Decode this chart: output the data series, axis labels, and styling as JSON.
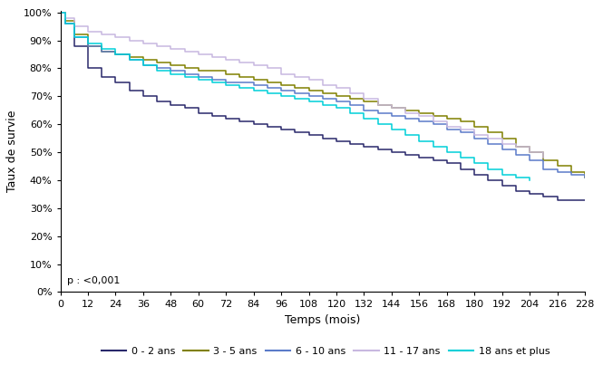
{
  "title": "",
  "xlabel": "Temps (mois)",
  "ylabel": "Taux de survie",
  "xlim": [
    0,
    228
  ],
  "ylim": [
    0,
    1.005
  ],
  "xticks": [
    0,
    12,
    24,
    36,
    48,
    60,
    72,
    84,
    96,
    108,
    120,
    132,
    144,
    156,
    168,
    180,
    192,
    204,
    216,
    228
  ],
  "yticks": [
    0.0,
    0.1,
    0.2,
    0.3,
    0.4,
    0.5,
    0.6,
    0.7,
    0.8,
    0.9,
    1.0
  ],
  "ytick_labels": [
    "0%",
    "10%",
    "20%",
    "30%",
    "40%",
    "50%",
    "60%",
    "70%",
    "80%",
    "90%",
    "100%"
  ],
  "pvalue_text": "p : <0,001",
  "legend_entries": [
    "0 - 2 ans",
    "3 - 5 ans",
    "6 - 10 ans",
    "11 - 17 ans",
    "18 ans et plus"
  ],
  "colors": [
    "#29286b",
    "#808000",
    "#5b7bc9",
    "#c8b8e0",
    "#00d0d8"
  ],
  "series": {
    "0_2_ans": {
      "x": [
        0,
        2,
        6,
        12,
        18,
        24,
        30,
        36,
        42,
        48,
        54,
        60,
        66,
        72,
        78,
        84,
        90,
        96,
        102,
        108,
        114,
        120,
        126,
        132,
        138,
        144,
        150,
        156,
        162,
        168,
        174,
        180,
        186,
        192,
        198,
        204,
        210,
        216,
        222,
        228
      ],
      "y": [
        1.0,
        0.96,
        0.88,
        0.8,
        0.77,
        0.75,
        0.72,
        0.7,
        0.68,
        0.67,
        0.66,
        0.64,
        0.63,
        0.62,
        0.61,
        0.6,
        0.59,
        0.58,
        0.57,
        0.56,
        0.55,
        0.54,
        0.53,
        0.52,
        0.51,
        0.5,
        0.49,
        0.48,
        0.47,
        0.46,
        0.44,
        0.42,
        0.4,
        0.38,
        0.36,
        0.35,
        0.34,
        0.33,
        0.33,
        0.33
      ]
    },
    "3_5_ans": {
      "x": [
        0,
        2,
        6,
        12,
        18,
        24,
        30,
        36,
        42,
        48,
        54,
        60,
        66,
        72,
        78,
        84,
        90,
        96,
        102,
        108,
        114,
        120,
        126,
        132,
        138,
        144,
        150,
        156,
        162,
        168,
        174,
        180,
        186,
        192,
        198,
        204,
        210,
        216,
        222,
        228
      ],
      "y": [
        1.0,
        0.97,
        0.92,
        0.88,
        0.86,
        0.85,
        0.84,
        0.83,
        0.82,
        0.81,
        0.8,
        0.79,
        0.79,
        0.78,
        0.77,
        0.76,
        0.75,
        0.74,
        0.73,
        0.72,
        0.71,
        0.7,
        0.69,
        0.68,
        0.67,
        0.66,
        0.65,
        0.64,
        0.63,
        0.62,
        0.61,
        0.59,
        0.57,
        0.55,
        0.52,
        0.5,
        0.47,
        0.45,
        0.43,
        0.41
      ]
    },
    "6_10_ans": {
      "x": [
        0,
        2,
        6,
        12,
        18,
        24,
        30,
        36,
        42,
        48,
        54,
        60,
        66,
        72,
        78,
        84,
        90,
        96,
        102,
        108,
        114,
        120,
        126,
        132,
        138,
        144,
        150,
        156,
        162,
        168,
        174,
        180,
        186,
        192,
        198,
        204,
        210,
        216,
        222,
        228
      ],
      "y": [
        1.0,
        0.96,
        0.91,
        0.88,
        0.86,
        0.85,
        0.83,
        0.81,
        0.8,
        0.79,
        0.78,
        0.77,
        0.76,
        0.75,
        0.75,
        0.74,
        0.73,
        0.72,
        0.71,
        0.7,
        0.69,
        0.68,
        0.67,
        0.65,
        0.64,
        0.63,
        0.62,
        0.61,
        0.6,
        0.58,
        0.57,
        0.55,
        0.53,
        0.51,
        0.49,
        0.47,
        0.44,
        0.43,
        0.42,
        0.41
      ]
    },
    "11_17_ans": {
      "x": [
        0,
        2,
        6,
        12,
        18,
        24,
        30,
        36,
        42,
        48,
        54,
        60,
        66,
        72,
        78,
        84,
        90,
        96,
        102,
        108,
        114,
        120,
        126,
        132,
        138,
        144,
        150,
        156,
        162,
        168,
        174,
        180,
        186,
        192,
        198,
        204,
        210
      ],
      "y": [
        1.0,
        0.98,
        0.95,
        0.93,
        0.92,
        0.91,
        0.9,
        0.89,
        0.88,
        0.87,
        0.86,
        0.85,
        0.84,
        0.83,
        0.82,
        0.81,
        0.8,
        0.78,
        0.77,
        0.76,
        0.74,
        0.73,
        0.71,
        0.69,
        0.67,
        0.66,
        0.64,
        0.63,
        0.61,
        0.59,
        0.58,
        0.56,
        0.55,
        0.53,
        0.52,
        0.5,
        0.48
      ]
    },
    "18_plus": {
      "x": [
        0,
        2,
        6,
        12,
        18,
        24,
        30,
        36,
        42,
        48,
        54,
        60,
        66,
        72,
        78,
        84,
        90,
        96,
        102,
        108,
        114,
        120,
        126,
        132,
        138,
        144,
        150,
        156,
        162,
        168,
        174,
        180,
        186,
        192,
        198,
        204
      ],
      "y": [
        1.0,
        0.96,
        0.91,
        0.89,
        0.87,
        0.85,
        0.83,
        0.81,
        0.79,
        0.78,
        0.77,
        0.76,
        0.75,
        0.74,
        0.73,
        0.72,
        0.71,
        0.7,
        0.69,
        0.68,
        0.67,
        0.66,
        0.64,
        0.62,
        0.6,
        0.58,
        0.56,
        0.54,
        0.52,
        0.5,
        0.48,
        0.46,
        0.44,
        0.42,
        0.41,
        0.4
      ]
    }
  }
}
